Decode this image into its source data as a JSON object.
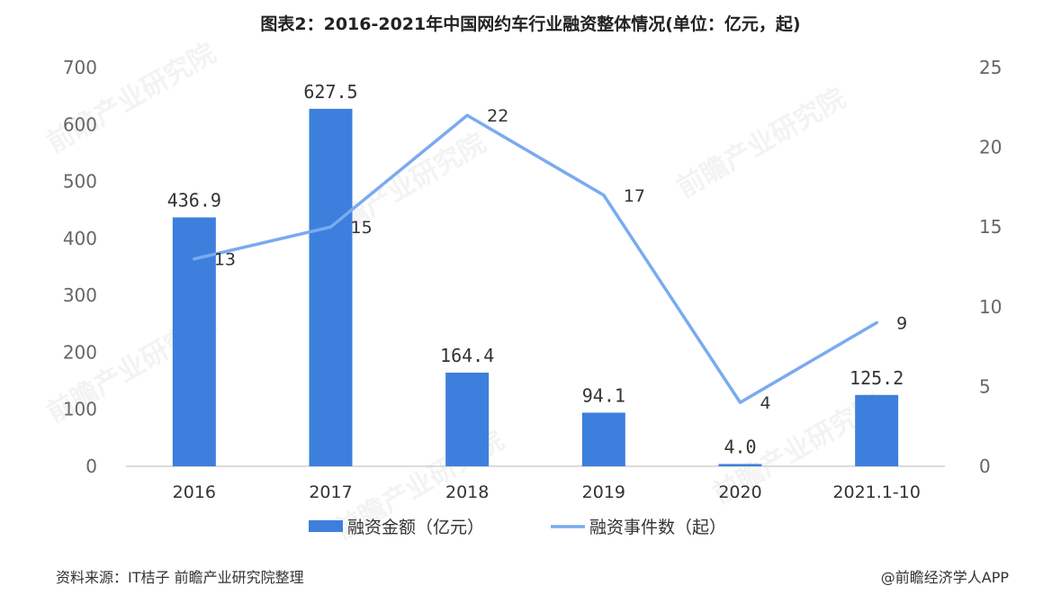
{
  "source_text": "资料来源：IT桔子 前瞻产业研究院整理",
  "credit_text": "@前瞻经济学人APP",
  "watermark_text": "前瞻产业研究院",
  "colors": {
    "bar": "#3d7fdc",
    "line": "#7aaaf0",
    "axis": "#d0d0d0"
  },
  "chart_data": {
    "type": "bar",
    "title": "图表2：2016-2021年中国网约车行业融资整体情况(单位：亿元，起)",
    "categories": [
      "2016",
      "2017",
      "2018",
      "2019",
      "2020",
      "2021.1-10"
    ],
    "series": [
      {
        "name": "融资金额（亿元）",
        "type": "bar",
        "axis": "left",
        "values": [
          436.9,
          627.5,
          164.4,
          94.1,
          4.0,
          125.2
        ],
        "labels": [
          "436.9",
          "627.5",
          "164.4",
          "94.1",
          "4.0",
          "125.2"
        ]
      },
      {
        "name": "融资事件数（起）",
        "type": "line",
        "axis": "right",
        "values": [
          13,
          15,
          22,
          17,
          4,
          9
        ],
        "labels": [
          "13",
          "15",
          "22",
          "17",
          "4",
          "9"
        ]
      }
    ],
    "y_left": {
      "min": 0,
      "max": 700,
      "ticks": [
        "0",
        "100",
        "200",
        "300",
        "400",
        "500",
        "600",
        "700"
      ]
    },
    "y_right": {
      "min": 0,
      "max": 25,
      "ticks": [
        "0",
        "5",
        "10",
        "15",
        "20",
        "25"
      ]
    },
    "grid": false,
    "legend": "bottom"
  }
}
